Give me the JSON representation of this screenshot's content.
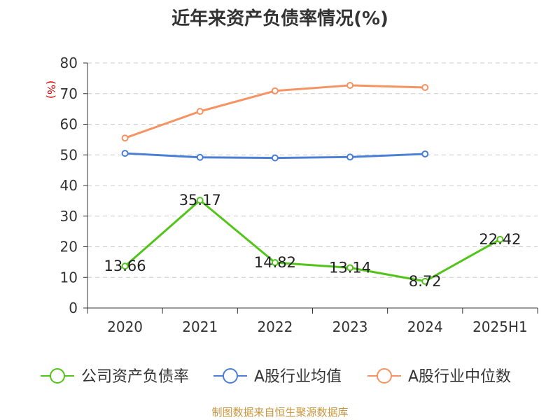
{
  "chart_data": {
    "type": "line",
    "title": "近年来资产负债率情况(%)",
    "ylabel": "(%)",
    "xlabel": "",
    "categories": [
      "2020",
      "2021",
      "2022",
      "2023",
      "2024",
      "2025H1"
    ],
    "ylim": [
      0,
      80
    ],
    "yticks": [
      0,
      10,
      20,
      30,
      40,
      50,
      60,
      70,
      80
    ],
    "grid": true,
    "legend_position": "bottom",
    "series": [
      {
        "name": "公司资产负债率",
        "color": "#52c41a",
        "values": [
          13.66,
          35.17,
          14.82,
          13.14,
          8.72,
          22.42
        ],
        "labels": [
          "13.66",
          "35.17",
          "14.82",
          "13.14",
          "8.72",
          "22.42"
        ]
      },
      {
        "name": "A股行业均值",
        "color": "#4a7fd6",
        "values": [
          50.5,
          49.2,
          49.0,
          49.3,
          50.3,
          null
        ]
      },
      {
        "name": "A股行业中位数",
        "color": "#f59362",
        "values": [
          55.5,
          64.2,
          70.9,
          72.7,
          72.0,
          null
        ]
      }
    ]
  },
  "source": "制图数据来自恒生聚源数据库"
}
